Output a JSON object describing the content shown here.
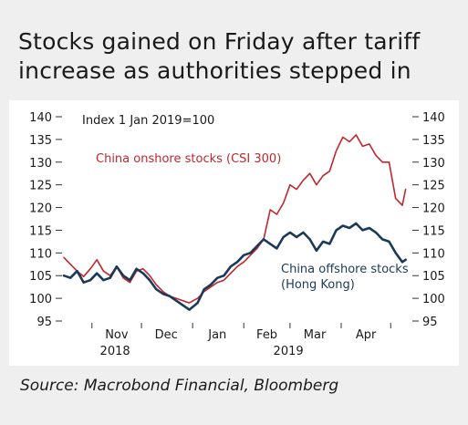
{
  "title": "Stocks gained on Friday after tariff increase as authorities stepped in",
  "source": "Source: Macrobond Financial, Bloomberg",
  "colors": {
    "onshore": "#c0272d",
    "offshore": "#1b3a57",
    "axis": "#333333",
    "background": "#efefef",
    "plot_background": "#ffffff"
  },
  "chart_data": {
    "type": "line",
    "title": "Stocks gained on Friday after tariff increase as authorities stepped in",
    "annotation": "Index 1 Jan 2019=100",
    "xlabel": "",
    "ylabel": "",
    "ylim": [
      95,
      140
    ],
    "yticks": [
      95,
      100,
      105,
      110,
      115,
      120,
      125,
      130,
      135,
      140
    ],
    "grid": false,
    "x_tick_labels": [
      "Nov",
      "Dec",
      "Jan",
      "Feb",
      "Mar",
      "Apr"
    ],
    "x_tick_dates": [
      "2018-11-01",
      "2018-12-01",
      "2019-01-01",
      "2019-02-01",
      "2019-03-01",
      "2019-04-01"
    ],
    "year_labels": [
      "2018",
      "2019"
    ],
    "year_label_dates": [
      "2018-11-15",
      "2019-02-28"
    ],
    "x_range": [
      "2018-10-15",
      "2019-05-13"
    ],
    "series": [
      {
        "name": "China onshore stocks (CSI 300)",
        "dates": [
          "2018-10-15",
          "2018-10-19",
          "2018-10-23",
          "2018-10-27",
          "2018-10-31",
          "2018-11-04",
          "2018-11-08",
          "2018-11-12",
          "2018-11-16",
          "2018-11-20",
          "2018-11-24",
          "2018-11-28",
          "2018-12-02",
          "2018-12-06",
          "2018-12-10",
          "2018-12-14",
          "2018-12-18",
          "2018-12-22",
          "2018-12-26",
          "2018-12-30",
          "2019-01-04",
          "2019-01-08",
          "2019-01-12",
          "2019-01-16",
          "2019-01-20",
          "2019-01-24",
          "2019-01-28",
          "2019-02-01",
          "2019-02-05",
          "2019-02-09",
          "2019-02-13",
          "2019-02-17",
          "2019-02-21",
          "2019-02-25",
          "2019-03-01",
          "2019-03-05",
          "2019-03-09",
          "2019-03-13",
          "2019-03-17",
          "2019-03-21",
          "2019-03-25",
          "2019-03-29",
          "2019-04-02",
          "2019-04-06",
          "2019-04-10",
          "2019-04-14",
          "2019-04-18",
          "2019-04-22",
          "2019-04-26",
          "2019-04-30",
          "2019-05-04",
          "2019-05-08",
          "2019-05-10"
        ],
        "values": [
          109.0,
          107.5,
          106.0,
          104.8,
          106.5,
          108.5,
          106.0,
          105.0,
          107.0,
          104.5,
          103.5,
          106.0,
          106.5,
          105.0,
          103.0,
          101.5,
          100.5,
          100.0,
          99.5,
          99.0,
          100.0,
          101.5,
          102.5,
          103.5,
          104.0,
          105.5,
          107.0,
          108.0,
          109.5,
          111.0,
          113.0,
          119.5,
          118.5,
          121.0,
          125.0,
          124.0,
          126.0,
          127.5,
          125.0,
          127.0,
          128.0,
          132.5,
          135.5,
          134.5,
          136.0,
          133.5,
          134.0,
          131.5,
          130.0,
          130.0,
          122.0,
          120.5,
          124.0
        ]
      },
      {
        "name": "China offshore stocks (Hong Kong)",
        "dates": [
          "2018-10-15",
          "2018-10-19",
          "2018-10-23",
          "2018-10-27",
          "2018-10-31",
          "2018-11-04",
          "2018-11-08",
          "2018-11-12",
          "2018-11-16",
          "2018-11-20",
          "2018-11-24",
          "2018-11-28",
          "2018-12-02",
          "2018-12-06",
          "2018-12-10",
          "2018-12-14",
          "2018-12-18",
          "2018-12-22",
          "2018-12-26",
          "2018-12-30",
          "2019-01-04",
          "2019-01-08",
          "2019-01-12",
          "2019-01-16",
          "2019-01-20",
          "2019-01-24",
          "2019-01-28",
          "2019-02-01",
          "2019-02-05",
          "2019-02-09",
          "2019-02-13",
          "2019-02-17",
          "2019-02-21",
          "2019-02-25",
          "2019-03-01",
          "2019-03-05",
          "2019-03-09",
          "2019-03-13",
          "2019-03-17",
          "2019-03-21",
          "2019-03-25",
          "2019-03-29",
          "2019-04-02",
          "2019-04-06",
          "2019-04-10",
          "2019-04-14",
          "2019-04-18",
          "2019-04-22",
          "2019-04-26",
          "2019-04-30",
          "2019-05-04",
          "2019-05-08",
          "2019-05-10"
        ],
        "values": [
          105.0,
          104.5,
          106.0,
          103.5,
          104.0,
          105.5,
          104.0,
          104.5,
          107.0,
          105.0,
          104.0,
          106.5,
          105.5,
          104.0,
          102.0,
          101.0,
          100.5,
          99.5,
          98.5,
          97.5,
          99.0,
          102.0,
          103.0,
          104.5,
          105.0,
          107.0,
          108.0,
          109.5,
          110.0,
          111.5,
          113.0,
          112.0,
          111.0,
          113.5,
          114.5,
          113.5,
          114.5,
          113.0,
          110.5,
          112.5,
          112.0,
          115.0,
          116.0,
          115.5,
          116.5,
          115.0,
          115.5,
          114.5,
          113.0,
          112.5,
          110.0,
          108.0,
          108.5
        ]
      }
    ]
  }
}
